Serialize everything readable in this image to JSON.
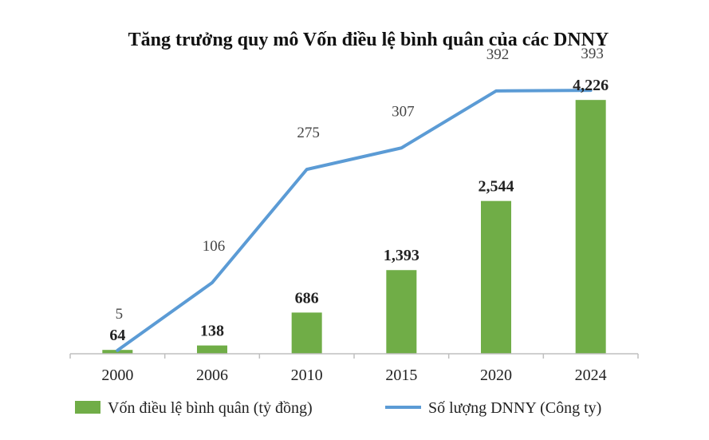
{
  "chart_data": {
    "type": "bar",
    "title": "Tăng trưởng quy mô Vốn điều lệ bình quân của các DNNY",
    "categories": [
      "2000",
      "2006",
      "2010",
      "2015",
      "2020",
      "2024"
    ],
    "series": [
      {
        "name": "Vốn điều lệ bình quân (tỷ đồng)",
        "type": "bar",
        "values": [
          64,
          138,
          686,
          1393,
          2544,
          4226
        ],
        "value_labels": [
          "64",
          "138",
          "686",
          "1,393",
          "2,544",
          "4,226"
        ],
        "color": "#70ad47"
      },
      {
        "name": "Số lượng DNNY (Công ty)",
        "type": "line",
        "values": [
          5,
          106,
          275,
          307,
          392,
          393
        ],
        "value_labels": [
          "5",
          "106",
          "275",
          "307",
          "392",
          "393"
        ],
        "color": "#5b9bd5"
      }
    ],
    "ylim_bar": [
      0,
      4800
    ],
    "ylim_line": [
      0,
      430
    ],
    "legend_position": "bottom",
    "grid": false
  }
}
